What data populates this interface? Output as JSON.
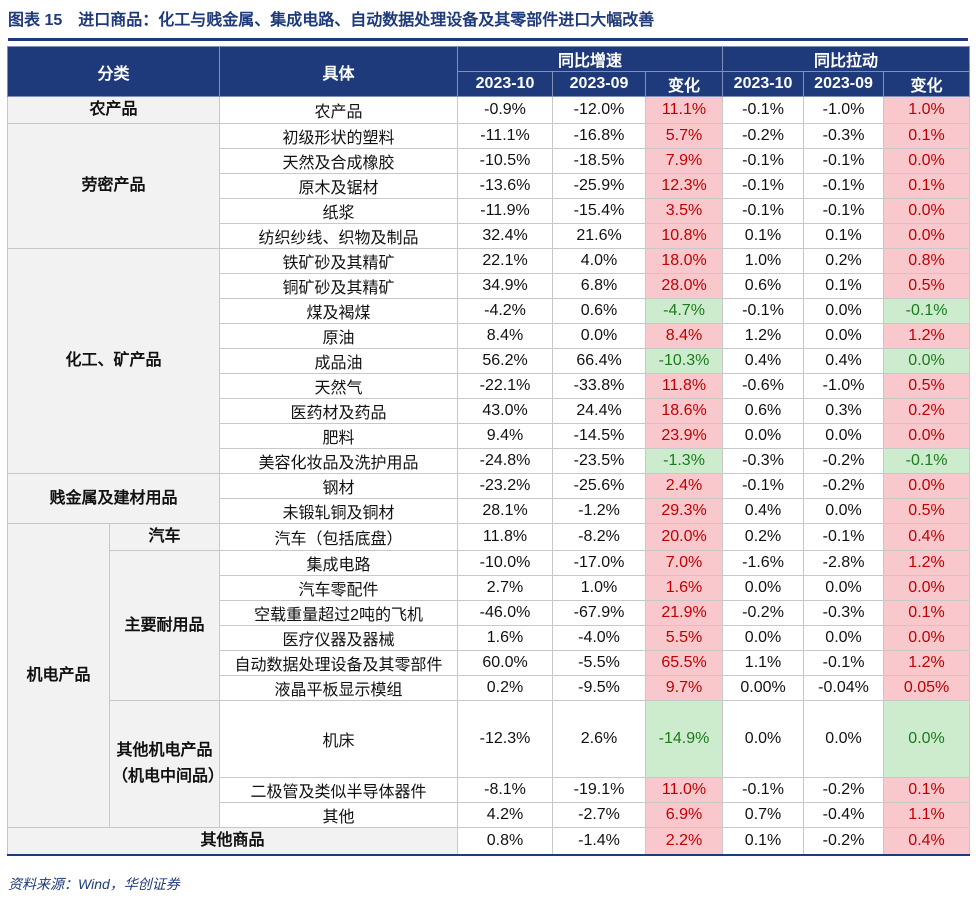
{
  "title": "图表 15　进口商品：化工与贱金属、集成电路、自动数据处理设备及其零部件进口大幅改善",
  "header": {
    "category": "分类",
    "item": "具体",
    "group1": "同比增速",
    "group2": "同比拉动",
    "periods": [
      "2023-10",
      "2023-09",
      "变化",
      "2023-10",
      "2023-09",
      "变化"
    ]
  },
  "sections": [
    {
      "label": "农产品",
      "rows": [
        {
          "item": "农产品",
          "values": [
            "-0.9%",
            "-12.0%",
            "11.1%",
            "-0.1%",
            "-1.0%",
            "1.0%"
          ]
        }
      ]
    },
    {
      "label": "劳密产品",
      "rows": [
        {
          "item": "初级形状的塑料",
          "values": [
            "-11.1%",
            "-16.8%",
            "5.7%",
            "-0.2%",
            "-0.3%",
            "0.1%"
          ]
        },
        {
          "item": "天然及合成橡胶",
          "values": [
            "-10.5%",
            "-18.5%",
            "7.9%",
            "-0.1%",
            "-0.1%",
            "0.0%"
          ]
        },
        {
          "item": "原木及锯材",
          "values": [
            "-13.6%",
            "-25.9%",
            "12.3%",
            "-0.1%",
            "-0.1%",
            "0.1%"
          ]
        },
        {
          "item": "纸浆",
          "values": [
            "-11.9%",
            "-15.4%",
            "3.5%",
            "-0.1%",
            "-0.1%",
            "0.0%"
          ]
        },
        {
          "item": "纺织纱线、织物及制品",
          "values": [
            "32.4%",
            "21.6%",
            "10.8%",
            "0.1%",
            "0.1%",
            "0.0%"
          ]
        }
      ]
    },
    {
      "label": "化工、矿产品",
      "rows": [
        {
          "item": "铁矿砂及其精矿",
          "values": [
            "22.1%",
            "4.0%",
            "18.0%",
            "1.0%",
            "0.2%",
            "0.8%"
          ]
        },
        {
          "item": "铜矿砂及其精矿",
          "values": [
            "34.9%",
            "6.8%",
            "28.0%",
            "0.6%",
            "0.1%",
            "0.5%"
          ]
        },
        {
          "item": "煤及褐煤",
          "values": [
            "-4.2%",
            "0.6%",
            "-4.7%",
            "-0.1%",
            "0.0%",
            "-0.1%"
          ]
        },
        {
          "item": "原油",
          "values": [
            "8.4%",
            "0.0%",
            "8.4%",
            "1.2%",
            "0.0%",
            "1.2%"
          ]
        },
        {
          "item": "成品油",
          "values": [
            "56.2%",
            "66.4%",
            "-10.3%",
            "0.4%",
            "0.4%",
            "0.0%"
          ]
        },
        {
          "item": "天然气",
          "values": [
            "-22.1%",
            "-33.8%",
            "11.8%",
            "-0.6%",
            "-1.0%",
            "0.5%"
          ]
        },
        {
          "item": "医药材及药品",
          "values": [
            "43.0%",
            "24.4%",
            "18.6%",
            "0.6%",
            "0.3%",
            "0.2%"
          ]
        },
        {
          "item": "肥料",
          "values": [
            "9.4%",
            "-14.5%",
            "23.9%",
            "0.0%",
            "0.0%",
            "0.0%"
          ]
        },
        {
          "item": "美容化妆品及洗护用品",
          "values": [
            "-24.8%",
            "-23.5%",
            "-1.3%",
            "-0.3%",
            "-0.2%",
            "-0.1%"
          ]
        }
      ]
    },
    {
      "label": "贱金属及建材用品",
      "rows": [
        {
          "item": "钢材",
          "values": [
            "-23.2%",
            "-25.6%",
            "2.4%",
            "-0.1%",
            "-0.2%",
            "0.0%"
          ]
        },
        {
          "item": "未锻轧铜及铜材",
          "values": [
            "28.1%",
            "-1.2%",
            "29.3%",
            "0.4%",
            "0.0%",
            "0.5%"
          ]
        }
      ]
    },
    {
      "label": "机电产品",
      "subsections": [
        {
          "label": "汽车",
          "rows": [
            {
              "item": "汽车（包括底盘）",
              "values": [
                "11.8%",
                "-8.2%",
                "20.0%",
                "0.2%",
                "-0.1%",
                "0.4%"
              ]
            }
          ]
        },
        {
          "label": "主要耐用品",
          "rows": [
            {
              "item": "集成电路",
              "values": [
                "-10.0%",
                "-17.0%",
                "7.0%",
                "-1.6%",
                "-2.8%",
                "1.2%"
              ]
            },
            {
              "item": "汽车零配件",
              "values": [
                "2.7%",
                "1.0%",
                "1.6%",
                "0.0%",
                "0.0%",
                "0.0%"
              ]
            },
            {
              "item": "空载重量超过2吨的飞机",
              "values": [
                "-46.0%",
                "-67.9%",
                "21.9%",
                "-0.2%",
                "-0.3%",
                "0.1%"
              ]
            },
            {
              "item": "医疗仪器及器械",
              "values": [
                "1.6%",
                "-4.0%",
                "5.5%",
                "0.0%",
                "0.0%",
                "0.0%"
              ]
            },
            {
              "item": "自动数据处理设备及其零部件",
              "values": [
                "60.0%",
                "-5.5%",
                "65.5%",
                "1.1%",
                "-0.1%",
                "1.2%"
              ]
            },
            {
              "item": "液晶平板显示模组",
              "values": [
                "0.2%",
                "-9.5%",
                "9.7%",
                "0.00%",
                "-0.04%",
                "0.05%"
              ]
            }
          ]
        },
        {
          "label": "其他机电产品（机电中间品）",
          "rows": [
            {
              "item": "机床",
              "values": [
                "-12.3%",
                "2.6%",
                "-14.9%",
                "0.0%",
                "0.0%",
                "0.0%"
              ]
            },
            {
              "item": "二极管及类似半导体器件",
              "values": [
                "-8.1%",
                "-19.1%",
                "11.0%",
                "-0.1%",
                "-0.2%",
                "0.1%"
              ]
            },
            {
              "item": "其他",
              "values": [
                "4.2%",
                "-2.7%",
                "6.9%",
                "0.7%",
                "-0.4%",
                "1.1%"
              ]
            }
          ]
        }
      ]
    },
    {
      "label": "其他商品",
      "rows": [
        {
          "values": [
            "0.8%",
            "-1.4%",
            "2.2%",
            "0.1%",
            "-0.2%",
            "0.4%"
          ]
        }
      ]
    }
  ],
  "source": "资料来源：Wind，华创证券"
}
